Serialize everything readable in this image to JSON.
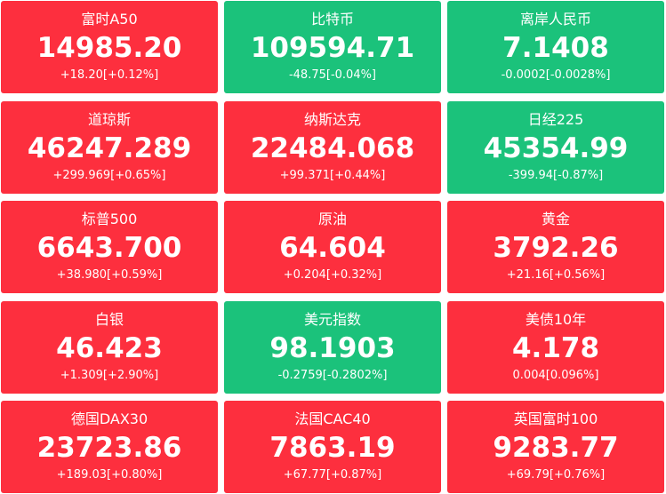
{
  "tiles": [
    {
      "name": "富时A50",
      "price": "14985.20",
      "change": "+18.20[+0.12%]",
      "color": "#fd2f3e"
    },
    {
      "name": "比特币",
      "price": "109594.71",
      "change": "-48.75[-0.04%]",
      "color": "#1bc27b"
    },
    {
      "name": "离岸人民币",
      "price": "7.1408",
      "change": "-0.0002[-0.0028%]",
      "color": "#1bc27b"
    },
    {
      "name": "道琼斯",
      "price": "46247.289",
      "change": "+299.969[+0.65%]",
      "color": "#fd2f3e"
    },
    {
      "name": "纳斯达克",
      "price": "22484.068",
      "change": "+99.371[+0.44%]",
      "color": "#fd2f3e"
    },
    {
      "name": "日经225",
      "price": "45354.99",
      "change": "-399.94[-0.87%]",
      "color": "#1bc27b"
    },
    {
      "name": "标普500",
      "price": "6643.700",
      "change": "+38.980[+0.59%]",
      "color": "#fd2f3e"
    },
    {
      "name": "原油",
      "price": "64.604",
      "change": "+0.204[+0.32%]",
      "color": "#fd2f3e"
    },
    {
      "name": "黄金",
      "price": "3792.26",
      "change": "+21.16[+0.56%]",
      "color": "#fd2f3e"
    },
    {
      "name": "白银",
      "price": "46.423",
      "change": "+1.309[+2.90%]",
      "color": "#fd2f3e"
    },
    {
      "name": "美元指数",
      "price": "98.1903",
      "change": "-0.2759[-0.2802%]",
      "color": "#1bc27b"
    },
    {
      "name": "美债10年",
      "price": "4.178",
      "change": "0.004[0.096%]",
      "color": "#fd2f3e"
    },
    {
      "name": "德国DAX30",
      "price": "23723.86",
      "change": "+189.03[+0.80%]",
      "color": "#fd2f3e"
    },
    {
      "name": "法国CAC40",
      "price": "7863.19",
      "change": "+67.77[+0.87%]",
      "color": "#fd2f3e"
    },
    {
      "name": "英国富时100",
      "price": "9283.77",
      "change": "+69.79[+0.76%]",
      "color": "#fd2f3e"
    }
  ]
}
